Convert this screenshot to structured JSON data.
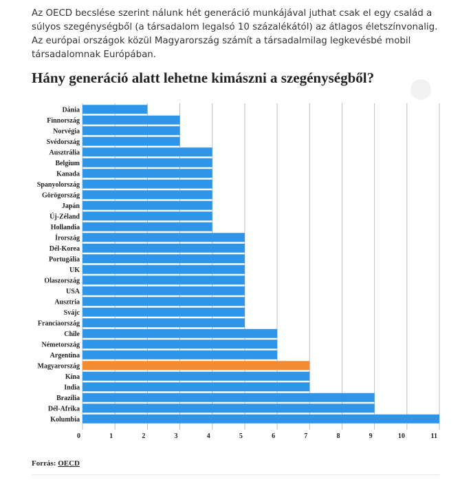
{
  "intro_text": "Az OECD becslése szerint nálunk hét generáció munkájával juthat csak el egy család a súlyos szegénységből (a társadalom legalsó 10 százalékától) az átlagos életszínvonalig. Az európai országok közül Magyarország számít a társadalmilag legkevésbé mobil társadalomnak Európában.",
  "source": {
    "label": "Forrás:",
    "link_text": "OECD"
  },
  "colors": {
    "bar": "#2f95e8",
    "highlight": "#f38b34",
    "grid": "#bdbdbd"
  },
  "chart_data": {
    "type": "bar",
    "orientation": "horizontal",
    "title": "Hány generáció alatt lehetne kimászni a szegénységből?",
    "xlabel": "",
    "ylabel": "",
    "xlim": [
      0,
      11
    ],
    "ticks": [
      0,
      1,
      2,
      3,
      4,
      5,
      6,
      7,
      8,
      9,
      10,
      11
    ],
    "grid": true,
    "highlight_category": "Magyarország",
    "categories": [
      "Dánia",
      "Finnország",
      "Norvégia",
      "Svédország",
      "Ausztrália",
      "Belgium",
      "Kanada",
      "Spanyolország",
      "Görögország",
      "Japán",
      "Új-Zéland",
      "Hollandia",
      "Írország",
      "Dél-Korea",
      "Portugália",
      "UK",
      "Olaszország",
      "USA",
      "Ausztria",
      "Svájc",
      "Franciaország",
      "Chile",
      "Németország",
      "Argentina",
      "Magyarország",
      "Kína",
      "India",
      "Brazília",
      "Dél-Afrika",
      "Kolumbia"
    ],
    "values": [
      2,
      3,
      3,
      3,
      4,
      4,
      4,
      4,
      4,
      4,
      4,
      4,
      5,
      5,
      5,
      5,
      5,
      5,
      5,
      5,
      5,
      6,
      6,
      6,
      7,
      7,
      7,
      9,
      9,
      11
    ]
  }
}
